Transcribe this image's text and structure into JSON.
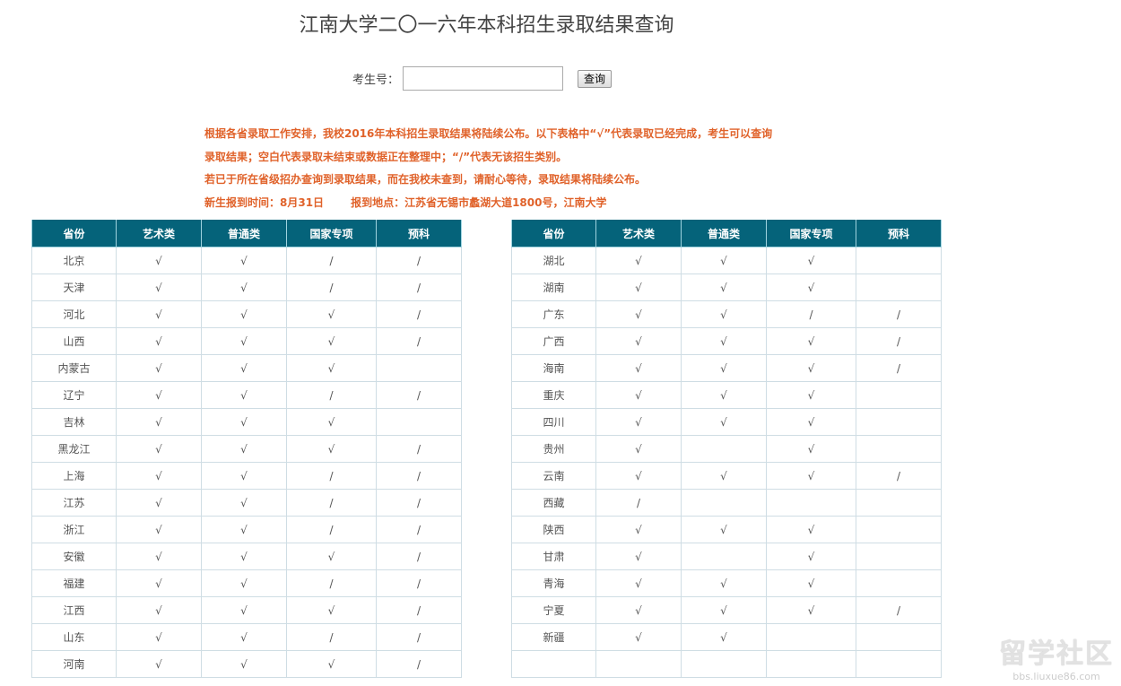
{
  "title": "江南大学二〇一六年本科招生录取结果查询",
  "search": {
    "label": "考生号：",
    "value": "",
    "placeholder": "",
    "button": "查询"
  },
  "notice": {
    "line1": "根据各省录取工作安排，我校2016年本科招生录取结果将陆续公布。以下表格中“√”代表录取已经完成，考生可以查询录取结果；空白代表录取未结束或数据正在整理中；“/”代表无该招生类别。",
    "line2": "若已于所在省级招办查询到录取结果，而在我校未查到，请耐心等待，录取结果将陆续公布。",
    "time": "新生报到时间：8月31日",
    "place": "报到地点：江苏省无锡市蠡湖大道1800号，江南大学"
  },
  "columns": [
    "省份",
    "艺术类",
    "普通类",
    "国家专项",
    "预科"
  ],
  "colors": {
    "header": "#05637a",
    "notice": "#e0622a"
  },
  "left_rows": [
    [
      "北京",
      "√",
      "√",
      "/",
      "/"
    ],
    [
      "天津",
      "√",
      "√",
      "/",
      "/"
    ],
    [
      "河北",
      "√",
      "√",
      "√",
      "/"
    ],
    [
      "山西",
      "√",
      "√",
      "√",
      "/"
    ],
    [
      "内蒙古",
      "√",
      "√",
      "√",
      ""
    ],
    [
      "辽宁",
      "√",
      "√",
      "/",
      "/"
    ],
    [
      "吉林",
      "√",
      "√",
      "√",
      ""
    ],
    [
      "黑龙江",
      "√",
      "√",
      "√",
      "/"
    ],
    [
      "上海",
      "√",
      "√",
      "/",
      "/"
    ],
    [
      "江苏",
      "√",
      "√",
      "/",
      "/"
    ],
    [
      "浙江",
      "√",
      "√",
      "/",
      "/"
    ],
    [
      "安徽",
      "√",
      "√",
      "√",
      "/"
    ],
    [
      "福建",
      "√",
      "√",
      "/",
      "/"
    ],
    [
      "江西",
      "√",
      "√",
      "√",
      "/"
    ],
    [
      "山东",
      "√",
      "√",
      "/",
      "/"
    ],
    [
      "河南",
      "√",
      "√",
      "√",
      "/"
    ]
  ],
  "right_rows": [
    [
      "湖北",
      "√",
      "√",
      "√",
      ""
    ],
    [
      "湖南",
      "√",
      "√",
      "√",
      ""
    ],
    [
      "广东",
      "√",
      "√",
      "/",
      "/"
    ],
    [
      "广西",
      "√",
      "√",
      "√",
      "/"
    ],
    [
      "海南",
      "√",
      "√",
      "√",
      "/"
    ],
    [
      "重庆",
      "√",
      "√",
      "√",
      ""
    ],
    [
      "四川",
      "√",
      "√",
      "√",
      ""
    ],
    [
      "贵州",
      "√",
      "",
      "√",
      ""
    ],
    [
      "云南",
      "√",
      "√",
      "√",
      "/"
    ],
    [
      "西藏",
      "/",
      "",
      "",
      ""
    ],
    [
      "陕西",
      "√",
      "√",
      "√",
      ""
    ],
    [
      "甘肃",
      "√",
      "",
      "√",
      ""
    ],
    [
      "青海",
      "√",
      "√",
      "√",
      ""
    ],
    [
      "宁夏",
      "√",
      "√",
      "√",
      "/"
    ],
    [
      "新疆",
      "√",
      "√",
      "",
      ""
    ],
    [
      "",
      "",
      "",
      "",
      ""
    ]
  ],
  "watermark": {
    "big": "留学社区",
    "small": "bbs.liuxue86.com"
  }
}
